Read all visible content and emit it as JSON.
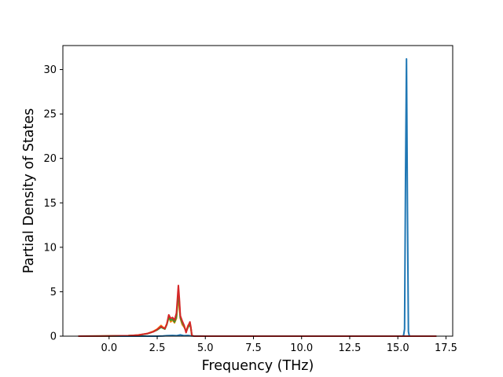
{
  "chart_data": {
    "type": "line",
    "title": "",
    "xlabel": "Frequency (THz)",
    "ylabel": "Partial Density of States",
    "xlim": [
      -2.4,
      17.85
    ],
    "ylim": [
      0,
      32.7
    ],
    "xticks": [
      0.0,
      2.5,
      5.0,
      7.5,
      10.0,
      12.5,
      15.0,
      17.5
    ],
    "xtick_labels": [
      "0.0",
      "2.5",
      "5.0",
      "7.5",
      "10.0",
      "12.5",
      "15.0",
      "17.5"
    ],
    "yticks": [
      0,
      5,
      10,
      15,
      20,
      25,
      30
    ],
    "ytick_labels": [
      "0",
      "5",
      "10",
      "15",
      "20",
      "25",
      "30"
    ],
    "grid": false,
    "legend": "none",
    "series": [
      {
        "color": "#1f77b4",
        "x": [
          -1.6,
          2.5,
          2.8,
          3.0,
          3.3,
          3.5,
          3.7,
          3.9,
          4.1,
          4.3,
          5.0,
          15.15,
          15.25,
          15.3,
          15.35,
          15.4,
          15.45,
          15.5,
          15.55,
          15.6,
          15.7,
          17.0
        ],
        "y": [
          0,
          0,
          0.02,
          0.05,
          0.08,
          0.05,
          0.15,
          0.05,
          0.08,
          0.02,
          0,
          0,
          0,
          0.1,
          0.8,
          18.0,
          31.2,
          14.0,
          0.5,
          0,
          0,
          0
        ]
      },
      {
        "color": "#ff7f0e",
        "x": [
          -1.6,
          0.0,
          1.0,
          1.5,
          2.0,
          2.3,
          2.5,
          2.7,
          2.8,
          2.9,
          3.0,
          3.1,
          3.2,
          3.3,
          3.4,
          3.5,
          3.6,
          3.65,
          3.7,
          3.8,
          3.9,
          4.0,
          4.1,
          4.2,
          4.25,
          4.3,
          4.4,
          5.0,
          17.0
        ],
        "y": [
          0,
          0.02,
          0.05,
          0.12,
          0.3,
          0.55,
          0.8,
          1.2,
          1.0,
          0.9,
          1.4,
          2.2,
          1.6,
          1.8,
          1.5,
          2.0,
          4.6,
          3.2,
          2.0,
          1.3,
          1.0,
          0.6,
          1.2,
          1.5,
          0.8,
          0.1,
          0,
          0,
          0
        ]
      },
      {
        "color": "#2ca02c",
        "x": [
          -1.6,
          0.0,
          1.0,
          1.5,
          2.0,
          2.3,
          2.5,
          2.7,
          2.8,
          2.9,
          3.0,
          3.1,
          3.2,
          3.3,
          3.4,
          3.5,
          3.6,
          3.65,
          3.7,
          3.8,
          3.9,
          4.0,
          4.1,
          4.2,
          4.25,
          4.3,
          4.4,
          5.0,
          17.0
        ],
        "y": [
          0,
          0.02,
          0.05,
          0.11,
          0.28,
          0.5,
          0.7,
          1.0,
          0.9,
          0.8,
          1.3,
          2.1,
          1.8,
          1.9,
          1.6,
          2.2,
          5.0,
          3.8,
          2.1,
          1.5,
          1.1,
          0.5,
          1.0,
          1.3,
          0.9,
          0.1,
          0,
          0,
          0
        ]
      },
      {
        "color": "#d62728",
        "x": [
          -1.6,
          0.0,
          1.0,
          1.5,
          2.0,
          2.3,
          2.5,
          2.7,
          2.8,
          2.9,
          3.0,
          3.1,
          3.2,
          3.3,
          3.4,
          3.5,
          3.6,
          3.65,
          3.7,
          3.8,
          3.9,
          4.0,
          4.1,
          4.2,
          4.25,
          4.3,
          4.4,
          5.0,
          17.0
        ],
        "y": [
          0,
          0.02,
          0.05,
          0.12,
          0.3,
          0.5,
          0.75,
          1.1,
          0.95,
          0.85,
          1.35,
          2.4,
          2.0,
          2.1,
          1.8,
          2.6,
          5.7,
          4.2,
          2.3,
          1.7,
          1.2,
          0.4,
          1.1,
          1.6,
          1.0,
          0.1,
          0,
          0,
          0
        ]
      }
    ]
  }
}
